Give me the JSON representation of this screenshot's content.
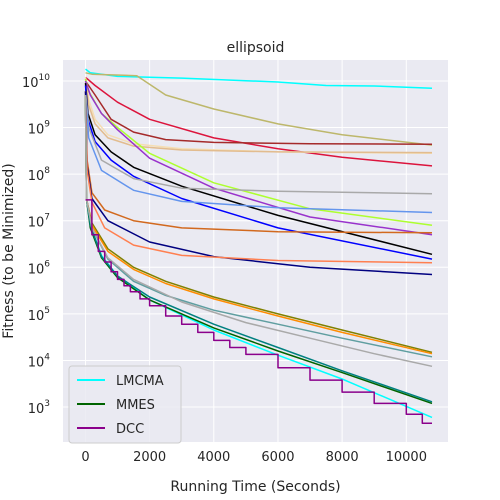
{
  "chart_data": {
    "type": "line",
    "title": "ellipsoid",
    "xlabel": "Running Time (Seconds)",
    "ylabel": "Fitness (to be Minimized)",
    "xlim": [
      -700,
      11300
    ],
    "ylim_log10": [
      2.25,
      10.45
    ],
    "log_y": true,
    "grid": true,
    "x_ticks": [
      0,
      2000,
      4000,
      6000,
      8000,
      10000
    ],
    "y_ticks": [
      {
        "base": "10",
        "exp": "3",
        "value": 1000
      },
      {
        "base": "10",
        "exp": "4",
        "value": 10000
      },
      {
        "base": "10",
        "exp": "5",
        "value": 100000
      },
      {
        "base": "10",
        "exp": "6",
        "value": 1000000
      },
      {
        "base": "10",
        "exp": "7",
        "value": 10000000
      },
      {
        "base": "10",
        "exp": "8",
        "value": 100000000
      },
      {
        "base": "10",
        "exp": "9",
        "value": 1000000000
      },
      {
        "base": "10",
        "exp": "10",
        "value": 10000000000
      }
    ],
    "legend": {
      "placement": "lower-left",
      "entries": [
        {
          "name": "LMCMA",
          "color": "#00ffff"
        },
        {
          "name": "MMES",
          "color": "#006400"
        },
        {
          "name": "DCC",
          "color": "#8b008b"
        }
      ]
    },
    "series": [
      {
        "color": "#00ffff",
        "x": [
          0,
          150,
          1000,
          3000,
          6000,
          7500,
          9000,
          10800
        ],
        "y": [
          18000000000.0,
          15000000000.0,
          12500000000.0,
          11500000000.0,
          9500000000.0,
          8000000000.0,
          7800000000.0,
          7000000000.0
        ]
      },
      {
        "color": "#bdb76b",
        "x": [
          0,
          200,
          1600,
          2500,
          4000,
          6000,
          8000,
          10800
        ],
        "y": [
          15000000000.0,
          14000000000.0,
          13000000000.0,
          5000000000.0,
          2500000000.0,
          1200000000.0,
          700000000.0,
          420000000.0
        ]
      },
      {
        "color": "#dc143c",
        "x": [
          0,
          300,
          1000,
          2000,
          4000,
          6000,
          8000,
          10800
        ],
        "y": [
          12000000000.0,
          8000000000.0,
          3500000000.0,
          1500000000.0,
          600000000.0,
          350000000.0,
          230000000.0,
          150000000.0
        ]
      },
      {
        "color": "#a52a2a",
        "x": [
          0,
          300,
          800,
          1500,
          2500,
          4000,
          7000,
          10800
        ],
        "y": [
          10000000000.0,
          5000000000.0,
          1500000000.0,
          800000000.0,
          550000000.0,
          480000000.0,
          450000000.0,
          440000000.0
        ]
      },
      {
        "color": "#f5deb3",
        "x": [
          0,
          100,
          300,
          700,
          1500,
          3000,
          6000,
          10800
        ],
        "y": [
          12000000000.0,
          4000000000.0,
          1500000000.0,
          700000000.0,
          450000000.0,
          350000000.0,
          300000000.0,
          280000000.0
        ]
      },
      {
        "color": "#e2bc8f",
        "x": [
          0,
          100,
          300,
          700,
          1500,
          3000,
          6000,
          10800
        ],
        "y": [
          11000000000.0,
          3000000000.0,
          1200000000.0,
          600000000.0,
          400000000.0,
          330000000.0,
          300000000.0,
          290000000.0
        ]
      },
      {
        "color": "#adff2f",
        "x": [
          0,
          100,
          500,
          1000,
          2000,
          4000,
          7000,
          10800
        ],
        "y": [
          11000000000.0,
          6000000000.0,
          2000000000.0,
          1000000000.0,
          280000000.0,
          65000000.0,
          18000000.0,
          8000000.0
        ]
      },
      {
        "color": "#9932cc",
        "x": [
          0,
          150,
          500,
          1000,
          2000,
          4000,
          7000,
          10800
        ],
        "y": [
          10000000000.0,
          5000000000.0,
          2000000000.0,
          900000000.0,
          220000000.0,
          50000000.0,
          12000000.0,
          5000000.0
        ]
      },
      {
        "color": "#000000",
        "x": [
          0,
          80,
          300,
          800,
          1500,
          3000,
          6000,
          10800
        ],
        "y": [
          9000000000.0,
          2000000000.0,
          700000000.0,
          300000000.0,
          140000000.0,
          55000000.0,
          13000000.0,
          1900000.0
        ]
      },
      {
        "color": "#0000ff",
        "x": [
          0,
          80,
          300,
          800,
          1500,
          3000,
          6000,
          10800
        ],
        "y": [
          8000000000.0,
          1500000000.0,
          500000000.0,
          200000000.0,
          90000000.0,
          30000000.0,
          7000000.0,
          1500000.0
        ]
      },
      {
        "color": "#a9a9a9",
        "x": [
          0,
          100,
          500,
          1500,
          3000,
          6000,
          10800
        ],
        "y": [
          6000000000.0,
          1000000000.0,
          200000000.0,
          80000000.0,
          50000000.0,
          43000000.0,
          38000000.0
        ]
      },
      {
        "color": "#6495ed",
        "x": [
          0,
          100,
          500,
          1500,
          3000,
          6000,
          10800
        ],
        "y": [
          5000000000.0,
          600000000.0,
          120000000.0,
          45000000.0,
          26000000.0,
          19000000.0,
          15000000.0
        ]
      },
      {
        "color": "#d2691e",
        "x": [
          0,
          50,
          200,
          600,
          1500,
          3000,
          6000,
          10800
        ],
        "y": [
          6000000000.0,
          200000000.0,
          40000000.0,
          17000000.0,
          10000000.0,
          7000000.0,
          5800000.0,
          5500000.0
        ]
      },
      {
        "color": "#000080",
        "x": [
          0,
          50,
          200,
          700,
          2000,
          4000,
          7000,
          10800
        ],
        "y": [
          6000000000.0,
          150000000.0,
          30000000.0,
          10000000.0,
          3500000.0,
          1700000.0,
          1000000.0,
          700000.0
        ]
      },
      {
        "color": "#ff7f50",
        "x": [
          0,
          50,
          200,
          600,
          1500,
          3000,
          6000,
          10800
        ],
        "y": [
          5000000000.0,
          120000000.0,
          25000000.0,
          7000000.0,
          3000000.0,
          1800000.0,
          1400000.0,
          1250000.0
        ]
      },
      {
        "color": "#00ffff",
        "x": [
          0,
          30,
          150,
          500,
          1000,
          2000,
          4000,
          6000,
          8000,
          10800
        ],
        "y": [
          5000000000.0,
          30000000.0,
          8000000.0,
          1800000.0,
          650000.0,
          200000.0,
          45000.0,
          13000.0,
          4000.0,
          600.0
        ]
      },
      {
        "color": "#006400",
        "x": [
          0,
          30,
          150,
          500,
          1000,
          2000,
          4000,
          6000,
          8000,
          10800
        ],
        "y": [
          5000000000.0,
          30000000.0,
          7000000.0,
          1600000.0,
          600000.0,
          200000.0,
          50000.0,
          16000.0,
          5500.0,
          1200.0
        ]
      },
      {
        "color": "#008080",
        "x": [
          0,
          30,
          150,
          500,
          1000,
          2000,
          4000,
          6000,
          8000,
          10800
        ],
        "y": [
          5000000000.0,
          30000000.0,
          8000000.0,
          1700000.0,
          650000.0,
          230000.0,
          60000.0,
          19000.0,
          6000.0,
          1300.0
        ]
      },
      {
        "color": "#808000",
        "x": [
          0,
          30,
          200,
          700,
          1500,
          2500,
          4000,
          6000,
          8000,
          10800
        ],
        "y": [
          5000000000.0,
          30000000.0,
          9000000.0,
          2500000.0,
          1000000.0,
          500000.0,
          230000.0,
          100000.0,
          45000.0,
          15000.0
        ]
      },
      {
        "color": "#ff8c00",
        "x": [
          0,
          30,
          200,
          700,
          1500,
          2500,
          4000,
          6000,
          8000,
          10800
        ],
        "y": [
          5000000000.0,
          30000000.0,
          8000000.0,
          2200000.0,
          900000.0,
          450000.0,
          210000.0,
          90000.0,
          40000.0,
          14000.0
        ]
      },
      {
        "color": "#5f9ea0",
        "x": [
          0,
          30,
          200,
          700,
          1500,
          2500,
          4000,
          6000,
          8000,
          10800
        ],
        "y": [
          5000000000.0,
          30000000.0,
          7000000.0,
          1500000.0,
          500000.0,
          250000.0,
          120000.0,
          60000.0,
          30000.0,
          12000.0
        ]
      },
      {
        "color": "#a9a9a9",
        "x": [
          0,
          30,
          200,
          700,
          1500,
          3000,
          5000,
          7000,
          9000,
          10800
        ],
        "y": [
          5000000000.0,
          30000000.0,
          7000000.0,
          1600000.0,
          550000.0,
          180000.0,
          65000.0,
          30000.0,
          14000.0,
          7500.0
        ]
      },
      {
        "color": "#8b008b",
        "step": true,
        "x": [
          0,
          50,
          200,
          400,
          600,
          800,
          1000,
          1200,
          1400,
          1700,
          2000,
          2500,
          3000,
          3500,
          4000,
          4500,
          5000,
          6000,
          7000,
          8000,
          9000,
          10000,
          10500,
          10800
        ],
        "y": [
          28000000.0,
          28000000.0,
          5000000.0,
          2200000.0,
          1300000.0,
          800000.0,
          550000.0,
          400000.0,
          300000.0,
          210000.0,
          150000.0,
          90000.0,
          60000.0,
          40000.0,
          27000.0,
          19000.0,
          13500.0,
          7000.0,
          3800.0,
          2100.0,
          1200.0,
          700.0,
          450.0,
          450.0
        ]
      }
    ]
  }
}
